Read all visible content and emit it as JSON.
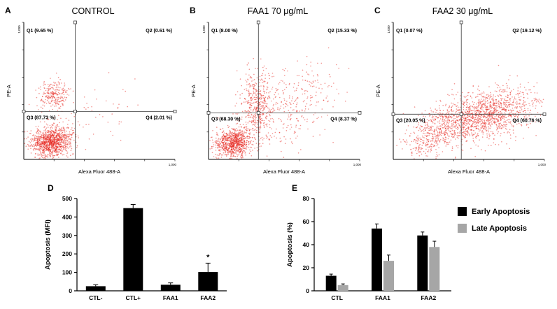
{
  "figure": {
    "background": "#ffffff"
  },
  "chart_data": [
    {
      "type": "scatter",
      "panel_label": "A",
      "title": "CONTROL",
      "xlabel": "Alexa Fluor 488-A",
      "ylabel": "PE-A",
      "x_end_tick_label": "1,000",
      "y_end_tick_label": "1,000",
      "point_color": "#e8251d",
      "quadrant_line_x": 0.34,
      "quadrant_line_y": 0.35,
      "quadrants": {
        "q1_label": "Q1 (9.65 %)",
        "q2_label": "Q2 (0.61 %)",
        "q3_label": "Q3 (87.73 %)",
        "q4_label": "Q4 (2.01 %)"
      },
      "clusters": [
        {
          "cx": 0.18,
          "cy": 0.13,
          "sx": 0.065,
          "sy": 0.055,
          "n": 1100,
          "corr": 0.15
        },
        {
          "cx": 0.2,
          "cy": 0.47,
          "sx": 0.05,
          "sy": 0.055,
          "n": 240,
          "corr": 0.0
        },
        {
          "cx": 0.42,
          "cy": 0.3,
          "sx": 0.22,
          "sy": 0.17,
          "n": 70,
          "corr": 0.2
        }
      ],
      "seed": 11
    },
    {
      "type": "scatter",
      "panel_label": "B",
      "title": "FAA1 70 μg/mL",
      "xlabel": "Alexa Fluor 488-A",
      "ylabel": "PE-A",
      "x_end_tick_label": "1,000",
      "y_end_tick_label": "1,000",
      "point_color": "#e8251d",
      "quadrant_line_x": 0.33,
      "quadrant_line_y": 0.34,
      "quadrants": {
        "q1_label": "Q1 (8.00 %)",
        "q2_label": "Q2 (15.33 %)",
        "q3_label": "Q3 (68.30 %)",
        "q4_label": "Q4 (8.37 %)"
      },
      "clusters": [
        {
          "cx": 0.16,
          "cy": 0.12,
          "sx": 0.06,
          "sy": 0.05,
          "n": 850,
          "corr": 0.15
        },
        {
          "cx": 0.32,
          "cy": 0.4,
          "sx": 0.055,
          "sy": 0.12,
          "n": 430,
          "corr": 0.1
        },
        {
          "cx": 0.55,
          "cy": 0.44,
          "sx": 0.16,
          "sy": 0.13,
          "n": 260,
          "corr": 0.35
        },
        {
          "cx": 0.45,
          "cy": 0.2,
          "sx": 0.2,
          "sy": 0.1,
          "n": 110,
          "corr": 0.2
        }
      ],
      "seed": 22
    },
    {
      "type": "scatter",
      "panel_label": "C",
      "title": "FAA2 30 μg/mL",
      "xlabel": "Alexa Fluor 488-A",
      "ylabel": "PE-A",
      "x_end_tick_label": "1,000",
      "y_end_tick_label": "1,000",
      "point_color": "#e8251d",
      "quadrant_line_x": 0.45,
      "quadrant_line_y": 0.33,
      "quadrants": {
        "q1_label": "Q1 (0.07 %)",
        "q2_label": "Q2 (19.12 %)",
        "q3_label": "Q3 (20.05 %)",
        "q4_label": "Q4 (60.76 %)"
      },
      "clusters": [
        {
          "cx": 0.6,
          "cy": 0.32,
          "sx": 0.17,
          "sy": 0.1,
          "n": 1350,
          "corr": 0.45
        },
        {
          "cx": 0.33,
          "cy": 0.25,
          "sx": 0.1,
          "sy": 0.09,
          "n": 320,
          "corr": 0.4
        },
        {
          "cx": 0.2,
          "cy": 0.12,
          "sx": 0.07,
          "sy": 0.05,
          "n": 120,
          "corr": 0.2
        }
      ],
      "seed": 33
    },
    {
      "type": "bar",
      "panel_label": "D",
      "ylabel": "Apoptosis (MFI)",
      "ylim": [
        0,
        500
      ],
      "yticks": [
        0,
        100,
        200,
        300,
        400,
        500
      ],
      "categories": [
        "CTL-",
        "CTL+",
        "FAA1",
        "FAA2"
      ],
      "series": [
        {
          "color": "#000000",
          "values": [
            25,
            448,
            33,
            102
          ],
          "errors": [
            8,
            20,
            10,
            48
          ]
        }
      ],
      "annotations": [
        {
          "category_index": 3,
          "series_index": 0,
          "text": "*"
        }
      ]
    },
    {
      "type": "bar",
      "panel_label": "E",
      "ylabel": "Apoptosis (%)",
      "ylim": [
        0,
        80
      ],
      "yticks": [
        0,
        20,
        40,
        60,
        80
      ],
      "categories": [
        "CTL",
        "FAA1",
        "FAA2"
      ],
      "series": [
        {
          "name": "Early Apoptosis",
          "color": "#000000",
          "values": [
            13,
            54,
            48
          ],
          "errors": [
            1.5,
            4,
            3
          ]
        },
        {
          "name": "Late Apoptosis",
          "color": "#a6a6a6",
          "values": [
            5,
            26,
            38
          ],
          "errors": [
            1,
            5,
            5
          ]
        }
      ],
      "annotations": []
    }
  ]
}
